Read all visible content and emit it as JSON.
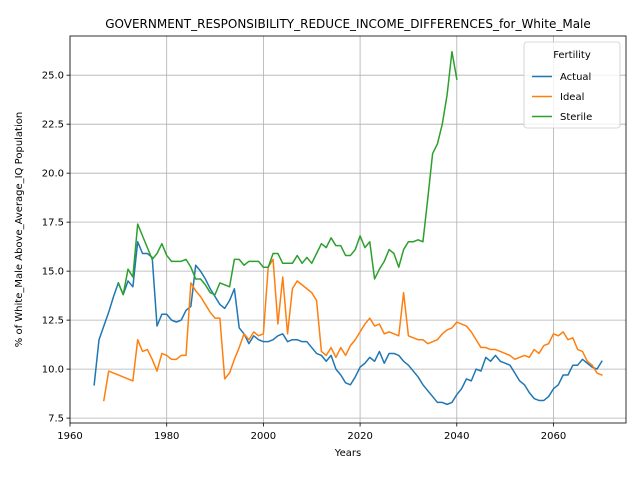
{
  "chart_data": {
    "type": "line",
    "title": "GOVERNMENT_RESPONSIBILITY_REDUCE_INCOME_DIFFERENCES_for_White_Male",
    "xlabel": "Years",
    "ylabel": "% of White_Male Above_Average_IQ Population",
    "xlim": [
      1960,
      2075
    ],
    "ylim": [
      7.25,
      27.0
    ],
    "xticks": [
      1960,
      1980,
      2000,
      2020,
      2040,
      2060
    ],
    "yticks": [
      7.5,
      10.0,
      12.5,
      15.0,
      17.5,
      20.0,
      22.5,
      25.0
    ],
    "grid": true,
    "legend": {
      "title": "Fertility",
      "placement": "top-right"
    },
    "series": [
      {
        "name": "Actual",
        "color": "#1f77b4",
        "points": [
          [
            1965,
            9.2
          ],
          [
            1966,
            11.5
          ],
          [
            1967,
            12.2
          ],
          [
            1968,
            12.9
          ],
          [
            1969,
            13.7
          ],
          [
            1970,
            14.4
          ],
          [
            1971,
            13.8
          ],
          [
            1972,
            14.5
          ],
          [
            1973,
            14.2
          ],
          [
            1974,
            16.5
          ],
          [
            1975,
            15.9
          ],
          [
            1976,
            15.9
          ],
          [
            1977,
            15.7
          ],
          [
            1978,
            12.2
          ],
          [
            1979,
            12.8
          ],
          [
            1980,
            12.8
          ],
          [
            1981,
            12.5
          ],
          [
            1982,
            12.4
          ],
          [
            1983,
            12.5
          ],
          [
            1984,
            13.0
          ],
          [
            1985,
            13.2
          ],
          [
            1986,
            15.3
          ],
          [
            1987,
            15.0
          ],
          [
            1988,
            14.6
          ],
          [
            1989,
            14.1
          ],
          [
            1990,
            13.7
          ],
          [
            1991,
            13.3
          ],
          [
            1992,
            13.1
          ],
          [
            1993,
            13.5
          ],
          [
            1994,
            14.1
          ],
          [
            1995,
            12.1
          ],
          [
            1996,
            11.8
          ],
          [
            1997,
            11.3
          ],
          [
            1998,
            11.7
          ],
          [
            1999,
            11.5
          ],
          [
            2000,
            11.4
          ],
          [
            2001,
            11.4
          ],
          [
            2002,
            11.5
          ],
          [
            2003,
            11.7
          ],
          [
            2004,
            11.8
          ],
          [
            2005,
            11.4
          ],
          [
            2006,
            11.5
          ],
          [
            2007,
            11.5
          ],
          [
            2008,
            11.4
          ],
          [
            2009,
            11.4
          ],
          [
            2010,
            11.1
          ],
          [
            2011,
            10.8
          ],
          [
            2012,
            10.7
          ],
          [
            2013,
            10.4
          ],
          [
            2014,
            10.7
          ],
          [
            2015,
            10.0
          ],
          [
            2016,
            9.7
          ],
          [
            2017,
            9.3
          ],
          [
            2018,
            9.2
          ],
          [
            2019,
            9.6
          ],
          [
            2020,
            10.1
          ],
          [
            2021,
            10.3
          ],
          [
            2022,
            10.6
          ],
          [
            2023,
            10.4
          ],
          [
            2024,
            10.9
          ],
          [
            2025,
            10.3
          ],
          [
            2026,
            10.8
          ],
          [
            2027,
            10.8
          ],
          [
            2028,
            10.7
          ],
          [
            2029,
            10.4
          ],
          [
            2030,
            10.2
          ],
          [
            2031,
            9.9
          ],
          [
            2032,
            9.6
          ],
          [
            2033,
            9.2
          ],
          [
            2034,
            8.9
          ],
          [
            2035,
            8.6
          ],
          [
            2036,
            8.3
          ],
          [
            2037,
            8.3
          ],
          [
            2038,
            8.2
          ],
          [
            2039,
            8.3
          ],
          [
            2040,
            8.7
          ],
          [
            2041,
            9.0
          ],
          [
            2042,
            9.5
          ],
          [
            2043,
            9.4
          ],
          [
            2044,
            10.0
          ],
          [
            2045,
            9.9
          ],
          [
            2046,
            10.6
          ],
          [
            2047,
            10.4
          ],
          [
            2048,
            10.7
          ],
          [
            2049,
            10.4
          ],
          [
            2050,
            10.3
          ],
          [
            2051,
            10.2
          ],
          [
            2052,
            9.8
          ],
          [
            2053,
            9.4
          ],
          [
            2054,
            9.2
          ],
          [
            2055,
            8.8
          ],
          [
            2056,
            8.5
          ],
          [
            2057,
            8.4
          ],
          [
            2058,
            8.4
          ],
          [
            2059,
            8.6
          ],
          [
            2060,
            9.0
          ],
          [
            2061,
            9.2
          ],
          [
            2062,
            9.7
          ],
          [
            2063,
            9.7
          ],
          [
            2064,
            10.2
          ],
          [
            2065,
            10.2
          ],
          [
            2066,
            10.5
          ],
          [
            2067,
            10.3
          ],
          [
            2068,
            10.1
          ],
          [
            2069,
            10.0
          ],
          [
            2070,
            10.4
          ]
        ]
      },
      {
        "name": "Ideal",
        "color": "#ff7f0e",
        "points": [
          [
            1967,
            8.4
          ],
          [
            1968,
            9.9
          ],
          [
            1969,
            9.8
          ],
          [
            1970,
            9.7
          ],
          [
            1971,
            9.6
          ],
          [
            1972,
            9.5
          ],
          [
            1973,
            9.4
          ],
          [
            1974,
            11.5
          ],
          [
            1975,
            10.9
          ],
          [
            1976,
            11.0
          ],
          [
            1977,
            10.5
          ],
          [
            1978,
            9.9
          ],
          [
            1979,
            10.8
          ],
          [
            1980,
            10.7
          ],
          [
            1981,
            10.5
          ],
          [
            1982,
            10.5
          ],
          [
            1983,
            10.7
          ],
          [
            1984,
            10.7
          ],
          [
            1985,
            14.4
          ],
          [
            1986,
            14.0
          ],
          [
            1987,
            13.7
          ],
          [
            1988,
            13.3
          ],
          [
            1989,
            12.9
          ],
          [
            1990,
            12.6
          ],
          [
            1991,
            12.6
          ],
          [
            1992,
            9.5
          ],
          [
            1993,
            9.8
          ],
          [
            1994,
            10.5
          ],
          [
            1995,
            11.1
          ],
          [
            1996,
            11.8
          ],
          [
            1997,
            11.5
          ],
          [
            1998,
            11.9
          ],
          [
            1999,
            11.7
          ],
          [
            2000,
            11.8
          ],
          [
            2001,
            15.2
          ],
          [
            2002,
            15.6
          ],
          [
            2003,
            12.3
          ],
          [
            2004,
            14.7
          ],
          [
            2005,
            11.8
          ],
          [
            2006,
            14.1
          ],
          [
            2007,
            14.5
          ],
          [
            2008,
            14.3
          ],
          [
            2009,
            14.1
          ],
          [
            2010,
            13.9
          ],
          [
            2011,
            13.5
          ],
          [
            2012,
            10.9
          ],
          [
            2013,
            10.7
          ],
          [
            2014,
            11.1
          ],
          [
            2015,
            10.6
          ],
          [
            2016,
            11.1
          ],
          [
            2017,
            10.7
          ],
          [
            2018,
            11.2
          ],
          [
            2019,
            11.5
          ],
          [
            2020,
            11.9
          ],
          [
            2021,
            12.3
          ],
          [
            2022,
            12.6
          ],
          [
            2023,
            12.2
          ],
          [
            2024,
            12.3
          ],
          [
            2025,
            11.8
          ],
          [
            2026,
            11.9
          ],
          [
            2027,
            11.8
          ],
          [
            2028,
            11.7
          ],
          [
            2029,
            13.9
          ],
          [
            2030,
            11.7
          ],
          [
            2031,
            11.6
          ],
          [
            2032,
            11.5
          ],
          [
            2033,
            11.5
          ],
          [
            2034,
            11.3
          ],
          [
            2035,
            11.4
          ],
          [
            2036,
            11.5
          ],
          [
            2037,
            11.8
          ],
          [
            2038,
            12.0
          ],
          [
            2039,
            12.1
          ],
          [
            2040,
            12.4
          ],
          [
            2041,
            12.3
          ],
          [
            2042,
            12.2
          ],
          [
            2043,
            11.9
          ],
          [
            2044,
            11.5
          ],
          [
            2045,
            11.1
          ],
          [
            2046,
            11.1
          ],
          [
            2047,
            11.0
          ],
          [
            2048,
            11.0
          ],
          [
            2049,
            10.9
          ],
          [
            2050,
            10.8
          ],
          [
            2051,
            10.7
          ],
          [
            2052,
            10.5
          ],
          [
            2053,
            10.6
          ],
          [
            2054,
            10.7
          ],
          [
            2055,
            10.6
          ],
          [
            2056,
            11.0
          ],
          [
            2057,
            10.8
          ],
          [
            2058,
            11.2
          ],
          [
            2059,
            11.3
          ],
          [
            2060,
            11.8
          ],
          [
            2061,
            11.7
          ],
          [
            2062,
            11.9
          ],
          [
            2063,
            11.5
          ],
          [
            2064,
            11.6
          ],
          [
            2065,
            11.0
          ],
          [
            2066,
            10.9
          ],
          [
            2067,
            10.4
          ],
          [
            2068,
            10.2
          ],
          [
            2069,
            9.8
          ],
          [
            2070,
            9.7
          ]
        ]
      },
      {
        "name": "Sterile",
        "color": "#2ca02c",
        "points": [
          [
            1970,
            14.4
          ],
          [
            1971,
            13.8
          ],
          [
            1972,
            15.1
          ],
          [
            1973,
            14.7
          ],
          [
            1974,
            17.4
          ],
          [
            1975,
            16.8
          ],
          [
            1976,
            16.2
          ],
          [
            1977,
            15.6
          ],
          [
            1978,
            15.9
          ],
          [
            1979,
            16.4
          ],
          [
            1980,
            15.8
          ],
          [
            1981,
            15.5
          ],
          [
            1982,
            15.5
          ],
          [
            1983,
            15.5
          ],
          [
            1984,
            15.6
          ],
          [
            1985,
            15.2
          ],
          [
            1986,
            14.6
          ],
          [
            1987,
            14.6
          ],
          [
            1988,
            14.3
          ],
          [
            1989,
            13.9
          ],
          [
            1990,
            13.8
          ],
          [
            1991,
            14.4
          ],
          [
            1992,
            14.3
          ],
          [
            1993,
            14.2
          ],
          [
            1994,
            15.6
          ],
          [
            1995,
            15.6
          ],
          [
            1996,
            15.3
          ],
          [
            1997,
            15.5
          ],
          [
            1998,
            15.5
          ],
          [
            1999,
            15.5
          ],
          [
            2000,
            15.2
          ],
          [
            2001,
            15.2
          ],
          [
            2002,
            15.9
          ],
          [
            2003,
            15.9
          ],
          [
            2004,
            15.4
          ],
          [
            2005,
            15.4
          ],
          [
            2006,
            15.4
          ],
          [
            2007,
            15.8
          ],
          [
            2008,
            15.4
          ],
          [
            2009,
            15.7
          ],
          [
            2010,
            15.4
          ],
          [
            2011,
            15.9
          ],
          [
            2012,
            16.4
          ],
          [
            2013,
            16.2
          ],
          [
            2014,
            16.7
          ],
          [
            2015,
            16.3
          ],
          [
            2016,
            16.3
          ],
          [
            2017,
            15.8
          ],
          [
            2018,
            15.8
          ],
          [
            2019,
            16.1
          ],
          [
            2020,
            16.8
          ],
          [
            2021,
            16.2
          ],
          [
            2022,
            16.5
          ],
          [
            2023,
            14.6
          ],
          [
            2024,
            15.1
          ],
          [
            2025,
            15.5
          ],
          [
            2026,
            16.1
          ],
          [
            2027,
            15.9
          ],
          [
            2028,
            15.2
          ],
          [
            2029,
            16.1
          ],
          [
            2030,
            16.5
          ],
          [
            2031,
            16.5
          ],
          [
            2032,
            16.6
          ],
          [
            2033,
            16.5
          ],
          [
            2034,
            18.7
          ],
          [
            2035,
            21.0
          ],
          [
            2036,
            21.5
          ],
          [
            2037,
            22.5
          ],
          [
            2038,
            24.0
          ],
          [
            2039,
            26.2
          ],
          [
            2040,
            24.8
          ]
        ]
      }
    ]
  }
}
